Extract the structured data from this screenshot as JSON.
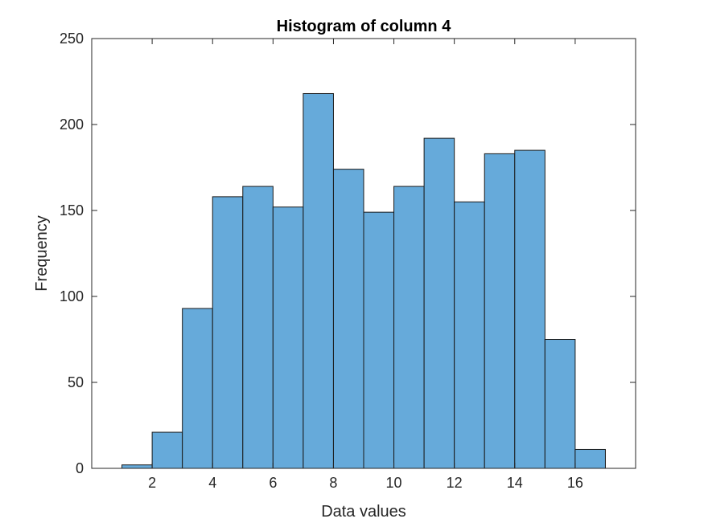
{
  "chart_data": {
    "type": "bar",
    "title": "Histogram of column 4",
    "xlabel": "Data values",
    "ylabel": "Frequency",
    "xlim": [
      0,
      18
    ],
    "ylim": [
      0,
      250
    ],
    "xticks": [
      2,
      4,
      6,
      8,
      10,
      12,
      14,
      16
    ],
    "yticks": [
      0,
      50,
      100,
      150,
      200,
      250
    ],
    "grid": false,
    "bar_color": "#66AADA",
    "edge_color": "#1a1a1a",
    "bins": [
      {
        "start": 1,
        "end": 2,
        "count": 2
      },
      {
        "start": 2,
        "end": 3,
        "count": 21
      },
      {
        "start": 3,
        "end": 4,
        "count": 93
      },
      {
        "start": 4,
        "end": 5,
        "count": 158
      },
      {
        "start": 5,
        "end": 6,
        "count": 164
      },
      {
        "start": 6,
        "end": 7,
        "count": 152
      },
      {
        "start": 7,
        "end": 8,
        "count": 218
      },
      {
        "start": 8,
        "end": 9,
        "count": 174
      },
      {
        "start": 9,
        "end": 10,
        "count": 149
      },
      {
        "start": 10,
        "end": 11,
        "count": 164
      },
      {
        "start": 11,
        "end": 12,
        "count": 192
      },
      {
        "start": 12,
        "end": 13,
        "count": 155
      },
      {
        "start": 13,
        "end": 14,
        "count": 183
      },
      {
        "start": 14,
        "end": 15,
        "count": 185
      },
      {
        "start": 15,
        "end": 16,
        "count": 75
      },
      {
        "start": 16,
        "end": 17,
        "count": 11
      }
    ]
  }
}
